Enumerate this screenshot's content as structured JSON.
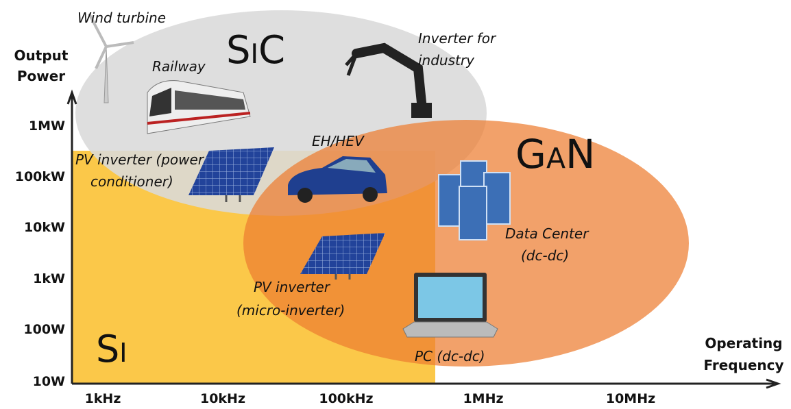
{
  "axes": {
    "y_title": [
      "Output",
      "Power"
    ],
    "x_title": [
      "Operating",
      "Frequency"
    ],
    "y_ticks": [
      "1MW",
      "100kW",
      "10kW",
      "1kW",
      "100W",
      "10W"
    ],
    "x_ticks": [
      "1kHz",
      "10kHz",
      "100kHz",
      "1MHz",
      "10MHz"
    ]
  },
  "regions": {
    "si": "Si",
    "sic": "SiC",
    "gan": "GaN"
  },
  "applications": {
    "wind_turbine": [
      "Wind turbine"
    ],
    "railway": [
      "Railway"
    ],
    "inverter_industry": [
      "Inverter for",
      "industry"
    ],
    "eh_hev": [
      "EH/HEV"
    ],
    "pv_power_conditioner": [
      "PV inverter (power",
      "conditioner)"
    ],
    "data_center": [
      "Data Center",
      "(dc-dc)"
    ],
    "pv_micro_inverter": [
      "PV inverter",
      "(micro-inverter)"
    ],
    "pc": [
      "PC (dc-dc)"
    ]
  }
}
